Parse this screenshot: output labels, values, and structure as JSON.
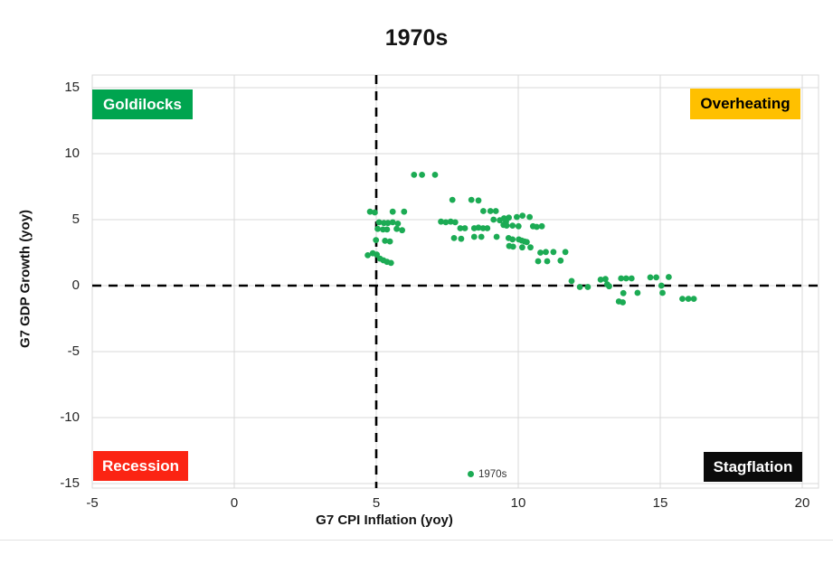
{
  "colors": {
    "point_green": "#1CAB54",
    "goldilocks_green": "#00A44F",
    "overheating_gold": "#FFC000",
    "recession_red": "#FB2413",
    "stagflation_black": "#0B0B0B",
    "gridline_gray": "#D9D9D9",
    "reference_line_black": "#000000",
    "tick_text": "#262626"
  },
  "chart_data": {
    "type": "scatter",
    "title": "1970s",
    "xlabel": "G7 CPI Inflation (yoy)",
    "ylabel": "G7 GDP Growth (yoy)",
    "xlim": [
      -5,
      20
    ],
    "ylim": [
      -15,
      15
    ],
    "xticks": [
      -5,
      0,
      5,
      10,
      15,
      20
    ],
    "yticks": [
      15,
      10,
      5,
      0,
      -5,
      -10,
      -15
    ],
    "grid": true,
    "legend": {
      "label": "1970s",
      "position": "bottom-center-inside"
    },
    "reference_lines": {
      "vertical_x": 5,
      "horizontal_y": 0,
      "style": "dashed",
      "color": "#000000"
    },
    "quadrant_labels": [
      {
        "label": "Goldilocks",
        "position": "top-left",
        "bg": "#00A44F",
        "text_color": "#FFFFFF"
      },
      {
        "label": "Overheating",
        "position": "top-right",
        "bg": "#FFC000",
        "text_color": "#000000"
      },
      {
        "label": "Recession",
        "position": "bottom-left",
        "bg": "#FB2413",
        "text_color": "#FFFFFF"
      },
      {
        "label": "Stagflation",
        "position": "bottom-right",
        "bg": "#0B0B0B",
        "text_color": "#FFFFFF"
      }
    ],
    "series": [
      {
        "name": "1970s",
        "color": "#1CAB54",
        "points": [
          [
            4.78,
            5.6
          ],
          [
            4.95,
            5.55
          ],
          [
            5.58,
            5.6
          ],
          [
            5.98,
            5.6
          ],
          [
            5.1,
            4.8
          ],
          [
            5.27,
            4.75
          ],
          [
            5.41,
            4.75
          ],
          [
            5.58,
            4.8
          ],
          [
            5.76,
            4.7
          ],
          [
            5.05,
            4.3
          ],
          [
            5.24,
            4.25
          ],
          [
            5.38,
            4.25
          ],
          [
            5.72,
            4.3
          ],
          [
            5.91,
            4.2
          ],
          [
            4.99,
            3.45
          ],
          [
            5.31,
            3.4
          ],
          [
            5.48,
            3.35
          ],
          [
            4.7,
            2.3
          ],
          [
            4.88,
            2.45
          ],
          [
            5.02,
            2.35
          ],
          [
            5.13,
            2.05
          ],
          [
            5.25,
            1.92
          ],
          [
            5.38,
            1.8
          ],
          [
            5.52,
            1.72
          ],
          [
            6.33,
            8.4
          ],
          [
            6.61,
            8.4
          ],
          [
            7.07,
            8.4
          ],
          [
            7.68,
            6.5
          ],
          [
            8.35,
            6.5
          ],
          [
            8.6,
            6.45
          ],
          [
            8.77,
            5.65
          ],
          [
            9.02,
            5.65
          ],
          [
            9.21,
            5.65
          ],
          [
            7.28,
            4.85
          ],
          [
            7.45,
            4.8
          ],
          [
            7.62,
            4.85
          ],
          [
            7.78,
            4.8
          ],
          [
            7.96,
            4.35
          ],
          [
            8.12,
            4.35
          ],
          [
            8.45,
            4.35
          ],
          [
            8.6,
            4.4
          ],
          [
            8.76,
            4.35
          ],
          [
            8.91,
            4.35
          ],
          [
            7.74,
            3.6
          ],
          [
            7.99,
            3.55
          ],
          [
            8.45,
            3.7
          ],
          [
            8.7,
            3.7
          ],
          [
            9.24,
            3.7
          ],
          [
            9.13,
            5.0
          ],
          [
            9.35,
            4.95
          ],
          [
            9.5,
            5.1
          ],
          [
            9.57,
            4.85
          ],
          [
            9.67,
            5.15
          ],
          [
            9.95,
            5.2
          ],
          [
            10.15,
            5.3
          ],
          [
            10.4,
            5.2
          ],
          [
            9.48,
            4.6
          ],
          [
            9.59,
            4.55
          ],
          [
            9.8,
            4.55
          ],
          [
            10.01,
            4.5
          ],
          [
            10.52,
            4.5
          ],
          [
            10.65,
            4.45
          ],
          [
            10.83,
            4.5
          ],
          [
            9.66,
            3.6
          ],
          [
            9.8,
            3.5
          ],
          [
            10.02,
            3.5
          ],
          [
            10.12,
            3.42
          ],
          [
            10.22,
            3.35
          ],
          [
            10.3,
            3.3
          ],
          [
            9.68,
            3.0
          ],
          [
            9.82,
            2.95
          ],
          [
            10.14,
            2.9
          ],
          [
            10.43,
            2.9
          ],
          [
            10.78,
            2.5
          ],
          [
            10.97,
            2.55
          ],
          [
            11.24,
            2.55
          ],
          [
            11.66,
            2.55
          ],
          [
            10.7,
            1.85
          ],
          [
            11.02,
            1.85
          ],
          [
            11.49,
            1.9
          ],
          [
            11.88,
            0.35
          ],
          [
            12.17,
            -0.1
          ],
          [
            12.45,
            -0.1
          ],
          [
            12.9,
            0.45
          ],
          [
            13.07,
            0.5
          ],
          [
            13.13,
            0.1
          ],
          [
            13.2,
            -0.05
          ],
          [
            13.62,
            0.55
          ],
          [
            13.8,
            0.55
          ],
          [
            13.99,
            0.55
          ],
          [
            13.7,
            -0.57
          ],
          [
            13.54,
            -1.2
          ],
          [
            13.68,
            -1.27
          ],
          [
            14.2,
            -0.55
          ],
          [
            14.65,
            0.62
          ],
          [
            14.86,
            0.62
          ],
          [
            15.3,
            0.65
          ],
          [
            15.04,
            0.0
          ],
          [
            15.08,
            -0.55
          ],
          [
            15.78,
            -1.0
          ],
          [
            15.99,
            -1.0
          ],
          [
            16.18,
            -1.0
          ]
        ]
      }
    ]
  }
}
